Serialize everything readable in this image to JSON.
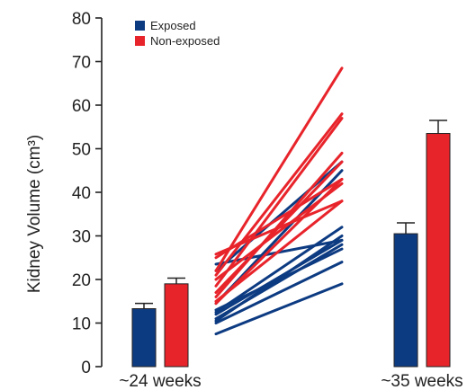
{
  "chart_data": {
    "type": "bar",
    "title": "",
    "ylabel": "Kidney Volume (cm³)",
    "xlabel": "",
    "ylim": [
      0,
      80
    ],
    "yticks": [
      0,
      10,
      20,
      30,
      40,
      50,
      60,
      70,
      80
    ],
    "categories": [
      "~24 weeks",
      "~35 weeks"
    ],
    "legend_position": "top-left",
    "series": [
      {
        "name": "Exposed",
        "color": "#0d3b82",
        "values": [
          13.3,
          30.5
        ],
        "errors": [
          1.2,
          2.5
        ]
      },
      {
        "name": "Non-exposed",
        "color": "#e8242b",
        "values": [
          19.0,
          53.5
        ],
        "errors": [
          1.3,
          3.0
        ]
      }
    ],
    "individual_lines": {
      "exposed": [
        [
          7.5,
          19
        ],
        [
          10,
          24
        ],
        [
          11,
          28
        ],
        [
          12,
          29
        ],
        [
          12.5,
          32
        ],
        [
          13,
          27
        ],
        [
          14.5,
          45
        ],
        [
          22,
          47
        ],
        [
          23.5,
          29
        ],
        [
          10.5,
          30
        ]
      ],
      "non_exposed": [
        [
          14.5,
          43
        ],
        [
          15,
          38
        ],
        [
          16,
          49
        ],
        [
          17,
          47
        ],
        [
          18.5,
          57
        ],
        [
          20,
          42
        ],
        [
          21,
          58
        ],
        [
          22,
          68.5
        ],
        [
          25,
          43
        ],
        [
          25.8,
          38
        ]
      ]
    },
    "grid": false
  }
}
